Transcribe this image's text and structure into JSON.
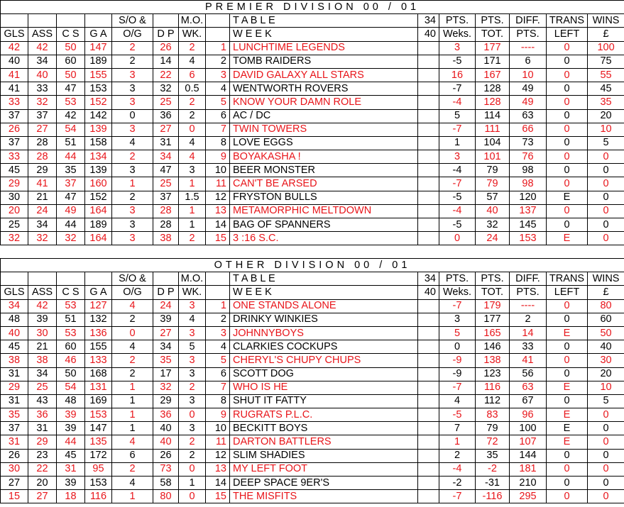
{
  "colors": {
    "header_blue": "#1f1fd6",
    "highlight_red": "#e8151a",
    "text": "#000000"
  },
  "premier": {
    "title": "PREMIER   DIVISION   00  /  01",
    "header1": [
      "",
      "",
      "",
      "",
      "S/O &",
      "",
      "M.O.",
      "",
      "T A B L E",
      "34",
      "PTS.",
      "PTS.",
      "DIFF.",
      "TRANS",
      "WINS"
    ],
    "header2": [
      "GLS",
      "ASS",
      "C S",
      "G A",
      "O/G",
      "D P",
      "WK.",
      "",
      "W E E K",
      "40",
      "Weks.",
      "TOT.",
      "PTS.",
      "LEFT",
      "£"
    ],
    "rows": [
      [
        "42",
        "42",
        "50",
        "147",
        "2",
        "26",
        "2",
        "1",
        "LUNCHTIME LEGENDS",
        "",
        "3",
        "177",
        "----",
        "0",
        "100"
      ],
      [
        "40",
        "34",
        "60",
        "189",
        "2",
        "14",
        "4",
        "2",
        "TOMB RAIDERS",
        "",
        "-5",
        "171",
        "6",
        "0",
        "75"
      ],
      [
        "41",
        "40",
        "50",
        "155",
        "3",
        "22",
        "6",
        "3",
        "DAVID GALAXY ALL STARS",
        "",
        "16",
        "167",
        "10",
        "0",
        "55"
      ],
      [
        "41",
        "33",
        "47",
        "153",
        "3",
        "32",
        "0.5",
        "4",
        "WENTWORTH ROVERS",
        "",
        "-7",
        "128",
        "49",
        "0",
        "45"
      ],
      [
        "33",
        "32",
        "53",
        "152",
        "3",
        "25",
        "2",
        "5",
        "KNOW YOUR DAMN ROLE",
        "",
        "-4",
        "128",
        "49",
        "0",
        "35"
      ],
      [
        "37",
        "37",
        "42",
        "142",
        "0",
        "36",
        "2",
        "6",
        "AC / DC",
        "",
        "5",
        "114",
        "63",
        "0",
        "20"
      ],
      [
        "26",
        "27",
        "54",
        "139",
        "3",
        "27",
        "0",
        "7",
        "TWIN TOWERS",
        "",
        "-7",
        "111",
        "66",
        "0",
        "10"
      ],
      [
        "37",
        "28",
        "51",
        "158",
        "4",
        "31",
        "4",
        "8",
        "LOVE EGGS",
        "",
        "1",
        "104",
        "73",
        "0",
        "5"
      ],
      [
        "33",
        "28",
        "44",
        "134",
        "2",
        "34",
        "4",
        "9",
        "BOYAKASHA !",
        "",
        "3",
        "101",
        "76",
        "0",
        "0"
      ],
      [
        "45",
        "29",
        "35",
        "139",
        "3",
        "47",
        "3",
        "10",
        "BEER MONSTER",
        "",
        "-4",
        "79",
        "98",
        "0",
        "0"
      ],
      [
        "29",
        "41",
        "37",
        "160",
        "1",
        "25",
        "1",
        "11",
        "CAN'T BE ARSED",
        "",
        "-7",
        "79",
        "98",
        "0",
        "0"
      ],
      [
        "30",
        "21",
        "47",
        "152",
        "2",
        "37",
        "1.5",
        "12",
        "FRYSTON BULLS",
        "",
        "-5",
        "57",
        "120",
        "E",
        "0"
      ],
      [
        "20",
        "24",
        "49",
        "164",
        "3",
        "28",
        "1",
        "13",
        "METAMORPHIC MELTDOWN",
        "",
        "-4",
        "40",
        "137",
        "0",
        "0"
      ],
      [
        "25",
        "34",
        "44",
        "189",
        "3",
        "28",
        "1",
        "14",
        "BAG OF SPANNERS",
        "",
        "-5",
        "32",
        "145",
        "0",
        "0"
      ],
      [
        "32",
        "32",
        "32",
        "164",
        "3",
        "38",
        "2",
        "15",
        "3 :16  S.C.",
        "",
        "0",
        "24",
        "153",
        "E",
        "0"
      ]
    ]
  },
  "other": {
    "title": "OTHER   DIVISION   00  /  01",
    "header1": [
      "",
      "",
      "",
      "",
      "S/O &",
      "",
      "M.O.",
      "",
      "T A B L E",
      "34",
      "PTS.",
      "PTS.",
      "DIFF.",
      "TRANS",
      "WINS"
    ],
    "header2": [
      "GLS",
      "ASS",
      "C S",
      "G A",
      "O/G",
      "D P",
      "WK.",
      "",
      "W E E K",
      "40",
      "Weks.",
      "TOT.",
      "PTS.",
      "LEFT",
      "£"
    ],
    "rows": [
      [
        "34",
        "42",
        "53",
        "127",
        "4",
        "24",
        "3",
        "1",
        "ONE STANDS ALONE",
        "",
        "-7",
        "179",
        "----",
        "0",
        "80"
      ],
      [
        "48",
        "39",
        "51",
        "132",
        "2",
        "39",
        "4",
        "2",
        "DRINKY WINKIES",
        "",
        "3",
        "177",
        "2",
        "0",
        "60"
      ],
      [
        "40",
        "30",
        "53",
        "136",
        "0",
        "27",
        "3",
        "3",
        "JOHNNYBOYS",
        "",
        "5",
        "165",
        "14",
        "E",
        "50"
      ],
      [
        "45",
        "21",
        "60",
        "155",
        "4",
        "34",
        "5",
        "4",
        "CLARKIES COCKUPS",
        "",
        "0",
        "146",
        "33",
        "0",
        "40"
      ],
      [
        "38",
        "38",
        "46",
        "133",
        "2",
        "35",
        "3",
        "5",
        "CHERYL'S CHUPY CHUPS",
        "",
        "-9",
        "138",
        "41",
        "0",
        "30"
      ],
      [
        "31",
        "34",
        "50",
        "168",
        "2",
        "17",
        "3",
        "6",
        "SCOTT DOG",
        "",
        "-9",
        "123",
        "56",
        "0",
        "20"
      ],
      [
        "29",
        "25",
        "54",
        "131",
        "1",
        "32",
        "2",
        "7",
        "WHO IS HE",
        "",
        "-7",
        "116",
        "63",
        "E",
        "10"
      ],
      [
        "31",
        "43",
        "48",
        "169",
        "1",
        "29",
        "3",
        "8",
        "SHUT IT FATTY",
        "",
        "4",
        "112",
        "67",
        "0",
        "5"
      ],
      [
        "35",
        "36",
        "39",
        "153",
        "1",
        "36",
        "0",
        "9",
        "RUGRATS P.L.C.",
        "",
        "-5",
        "83",
        "96",
        "E",
        "0"
      ],
      [
        "37",
        "31",
        "39",
        "147",
        "1",
        "40",
        "3",
        "10",
        "BECKITT BOYS",
        "",
        "7",
        "79",
        "100",
        "E",
        "0"
      ],
      [
        "31",
        "29",
        "44",
        "135",
        "4",
        "40",
        "2",
        "11",
        "DARTON BATTLERS",
        "",
        "1",
        "72",
        "107",
        "E",
        "0"
      ],
      [
        "26",
        "23",
        "45",
        "172",
        "6",
        "26",
        "2",
        "12",
        "SLIM SHADIES",
        "",
        "2",
        "35",
        "144",
        "0",
        "0"
      ],
      [
        "30",
        "22",
        "31",
        "95",
        "2",
        "73",
        "0",
        "13",
        "MY LEFT FOOT",
        "",
        "-4",
        "-2",
        "181",
        "0",
        "0"
      ],
      [
        "27",
        "20",
        "39",
        "153",
        "4",
        "58",
        "1",
        "14",
        "DEEP SPACE 9ER'S",
        "",
        "-2",
        "-31",
        "210",
        "0",
        "0"
      ],
      [
        "15",
        "27",
        "18",
        "116",
        "1",
        "80",
        "0",
        "15",
        "THE MISFITS",
        "",
        "-7",
        "-116",
        "295",
        "0",
        "0"
      ]
    ]
  }
}
